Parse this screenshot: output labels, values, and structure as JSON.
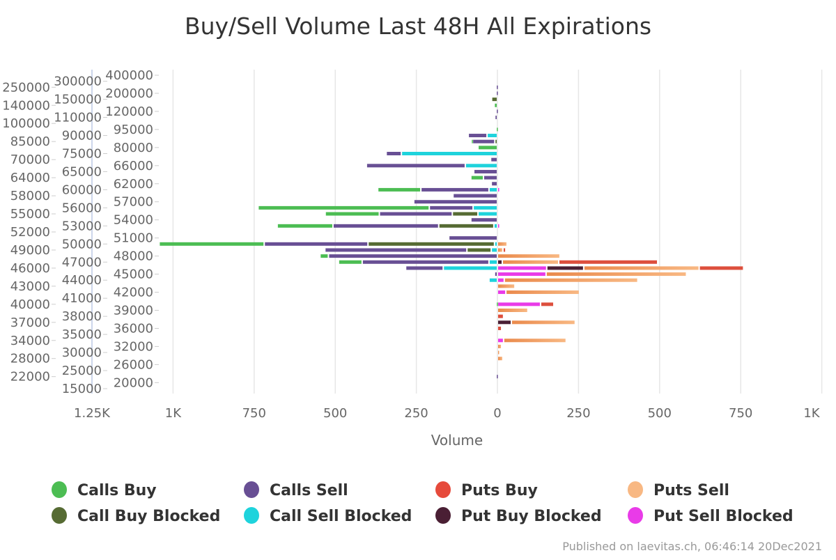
{
  "chart_data": {
    "type": "bar",
    "orientation": "horizontal-stacked-diverging",
    "title": "Buy/Sell Volume Last 48H All Expirations",
    "xlabel": "Volume",
    "ylabel": "",
    "xlim": [
      -1250,
      1000
    ],
    "x_ticks": [
      -1250,
      -1000,
      -750,
      -500,
      -250,
      0,
      250,
      500,
      750,
      1000
    ],
    "x_tick_labels": [
      "1.25K",
      "1K",
      "750",
      "500",
      "250",
      "0",
      "250",
      "500",
      "750",
      "1K"
    ],
    "grid": true,
    "legend_position": "bottom",
    "categories": [
      "400000",
      "300000",
      "250000",
      "200000",
      "150000",
      "140000",
      "120000",
      "110000",
      "100000",
      "95000",
      "90000",
      "85000",
      "80000",
      "75000",
      "70000",
      "66000",
      "65000",
      "64000",
      "62000",
      "60000",
      "58000",
      "57000",
      "56000",
      "55000",
      "54000",
      "53000",
      "52000",
      "51000",
      "50000",
      "49000",
      "48000",
      "47000",
      "46000",
      "45000",
      "44000",
      "43000",
      "42000",
      "41000",
      "40000",
      "39000",
      "38000",
      "37000",
      "36000",
      "35000",
      "34000",
      "32000",
      "30000",
      "28000",
      "26000",
      "25000",
      "22000",
      "20000",
      "15000"
    ],
    "series": [
      {
        "key": "call_sell_blocked",
        "name": "Call Sell Blocked",
        "side": "left",
        "color": "#1ed3dc",
        "values": [
          0,
          0,
          0,
          0,
          0,
          0,
          0,
          0,
          0,
          0,
          32,
          0,
          0,
          296,
          0,
          99,
          0,
          0,
          0,
          26,
          0,
          0,
          75,
          60,
          0,
          11,
          0,
          0,
          9,
          19,
          0,
          26,
          167,
          0,
          26,
          0,
          0,
          0,
          0,
          0,
          0,
          0,
          0,
          0,
          0,
          0,
          0,
          0,
          0,
          0,
          0,
          0,
          0
        ]
      },
      {
        "key": "call_buy_blocked",
        "name": "Call Buy Blocked",
        "side": "left",
        "color": "#566b33",
        "values": [
          0,
          0,
          0,
          0,
          18,
          0,
          0,
          0,
          0,
          0,
          0,
          8,
          0,
          0,
          0,
          0,
          0,
          0,
          0,
          0,
          0,
          0,
          0,
          79,
          0,
          170,
          0,
          0,
          390,
          75,
          0,
          0,
          0,
          0,
          0,
          0,
          0,
          0,
          0,
          0,
          0,
          0,
          0,
          0,
          0,
          0,
          0,
          0,
          0,
          0,
          0,
          0,
          0
        ]
      },
      {
        "key": "calls_sell",
        "name": "Calls Sell",
        "side": "left",
        "color": "#684f94",
        "values": [
          0,
          0,
          4,
          4,
          0,
          0,
          4,
          8,
          0,
          0,
          58,
          69,
          0,
          47,
          21,
          305,
          73,
          43,
          19,
          210,
          137,
          258,
          135,
          225,
          82,
          326,
          0,
          150,
          320,
          438,
          521,
          391,
          116,
          9,
          0,
          0,
          0,
          0,
          0,
          0,
          0,
          0,
          0,
          0,
          0,
          0,
          0,
          0,
          0,
          0,
          4,
          0,
          0
        ]
      },
      {
        "key": "calls_buy",
        "name": "Calls Buy",
        "side": "left",
        "color": "#4cbd53",
        "values": [
          0,
          0,
          0,
          0,
          0,
          10,
          0,
          0,
          0,
          4,
          0,
          4,
          60,
          0,
          0,
          0,
          0,
          39,
          0,
          133,
          0,
          0,
          528,
          167,
          0,
          172,
          0,
          0,
          324,
          0,
          26,
          73,
          0,
          0,
          0,
          0,
          0,
          0,
          4,
          0,
          0,
          0,
          0,
          0,
          0,
          0,
          0,
          0,
          0,
          0,
          0,
          0,
          0
        ]
      },
      {
        "key": "put_sell_blocked",
        "name": "Put Sell Blocked",
        "side": "right",
        "color": "#e93be8",
        "values": [
          0,
          0,
          0,
          0,
          0,
          0,
          0,
          0,
          0,
          0,
          0,
          0,
          0,
          0,
          0,
          0,
          0,
          0,
          0,
          6,
          0,
          0,
          0,
          0,
          0,
          4,
          0,
          0,
          0,
          0,
          0,
          0,
          152,
          150,
          21,
          0,
          26,
          0,
          133,
          0,
          0,
          0,
          0,
          0,
          19,
          0,
          0,
          0,
          0,
          0,
          0,
          0,
          0
        ]
      },
      {
        "key": "put_buy_blocked",
        "name": "Put Buy Blocked",
        "side": "right",
        "color": "#4a1f34",
        "values": [
          0,
          0,
          0,
          0,
          0,
          0,
          0,
          0,
          0,
          0,
          0,
          0,
          0,
          0,
          0,
          0,
          0,
          0,
          0,
          0,
          0,
          0,
          0,
          0,
          0,
          0,
          0,
          0,
          0,
          0,
          0,
          15,
          114,
          0,
          0,
          0,
          0,
          0,
          0,
          0,
          0,
          43,
          0,
          0,
          0,
          0,
          0,
          0,
          0,
          0,
          0,
          0,
          0
        ]
      },
      {
        "key": "puts_sell",
        "name": "Puts Sell",
        "side": "right",
        "color": "#f8b883",
        "values": [
          0,
          0,
          0,
          0,
          0,
          0,
          0,
          0,
          0,
          0,
          0,
          0,
          0,
          0,
          0,
          0,
          0,
          0,
          0,
          0,
          0,
          0,
          0,
          0,
          0,
          0,
          0,
          0,
          30,
          17,
          193,
          174,
          356,
          433,
          412,
          54,
          227,
          0,
          0,
          94,
          0,
          197,
          0,
          0,
          193,
          13,
          4,
          17,
          0,
          0,
          0,
          0,
          0
        ]
      },
      {
        "key": "puts_buy",
        "name": "Puts Buy",
        "side": "right",
        "color": "#dd4f3d",
        "values": [
          0,
          0,
          0,
          0,
          0,
          0,
          0,
          0,
          0,
          0,
          0,
          0,
          0,
          0,
          0,
          0,
          0,
          0,
          0,
          0,
          0,
          0,
          0,
          0,
          0,
          0,
          0,
          0,
          0,
          9,
          0,
          305,
          137,
          0,
          0,
          0,
          0,
          0,
          41,
          0,
          19,
          0,
          13,
          0,
          0,
          0,
          0,
          0,
          0,
          0,
          0,
          0,
          0
        ]
      }
    ]
  },
  "legend": [
    {
      "label": "Calls Buy",
      "color": "#4cbd53"
    },
    {
      "label": "Calls Sell",
      "color": "#684f94"
    },
    {
      "label": "Puts Buy",
      "color": "#e64a3b"
    },
    {
      "label": "Puts Sell",
      "color": "#f8b883"
    },
    {
      "label": "Call Buy Blocked",
      "color": "#566b33"
    },
    {
      "label": "Call Sell Blocked",
      "color": "#1ed3dc"
    },
    {
      "label": "Put Buy Blocked",
      "color": "#4a1f34"
    },
    {
      "label": "Put Sell Blocked",
      "color": "#e93be8"
    }
  ],
  "credit": "Published on laevitas.ch, 06:46:14 20Dec2021"
}
